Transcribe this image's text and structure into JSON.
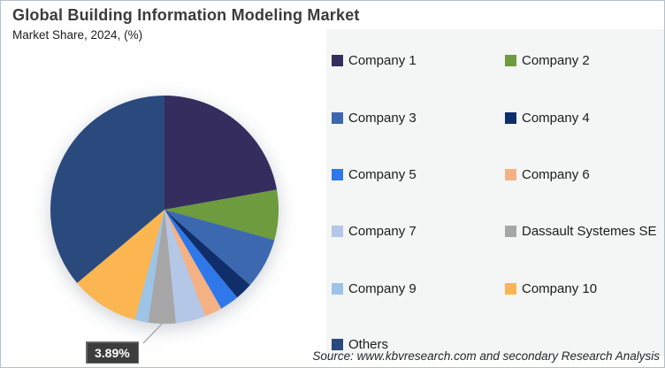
{
  "header": {
    "title": "Global Building Information Modeling Market",
    "subtitle": "Market Share, 2024, (%)"
  },
  "source_note": "Source: www.kbvresearch.com and secondary Research Analysis",
  "chart_data": {
    "type": "pie",
    "title": "Global Building Information Modeling Market",
    "subtitle": "Market Share, 2024, (%)",
    "unit": "%",
    "start_angle_deg": 0,
    "direction": "clockwise",
    "legend_position": "right",
    "labels": [
      "Company 1",
      "Company 2",
      "Company 3",
      "Company 4",
      "Company 5",
      "Company 6",
      "Company 7",
      "Dassault Systemes SE",
      "Company 9",
      "Company 10",
      "Others"
    ],
    "values": [
      22.2,
      7.1,
      7.2,
      2.5,
      2.7,
      2.5,
      4.2,
      3.89,
      1.9,
      9.7,
      36.11
    ],
    "colors": [
      "#352d5e",
      "#6d9b3e",
      "#3b68af",
      "#102e6a",
      "#2e78ea",
      "#f4b183",
      "#b4c7e7",
      "#a6a6a6",
      "#9dc3e6",
      "#fbb651",
      "#2a4a7e"
    ],
    "annotations": [
      {
        "slice": "Dassault Systemes SE",
        "slice_index": 7,
        "label": "3.89%"
      }
    ],
    "values_note": "Only the 3.89% slice is labeled in the figure; other slice values estimated from angles."
  }
}
